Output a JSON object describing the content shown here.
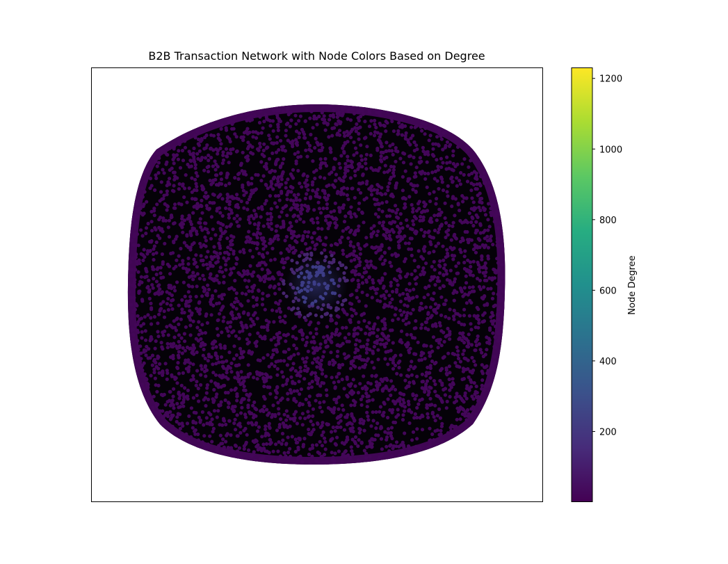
{
  "chart_data": {
    "type": "scatter",
    "title": "B2B Transaction Network with Node Colors Based on Degree",
    "xlabel": "",
    "ylabel": "",
    "description_kind": "network graph rendered as node scatter with edges",
    "node_color_scale": "viridis",
    "colorbar": {
      "label": "Node Degree",
      "range": [
        1,
        1230
      ],
      "ticks": [
        200,
        400,
        600,
        800,
        1000,
        1200
      ],
      "tick_labels": [
        "200",
        "400",
        "600",
        "800",
        "1000",
        "1200"
      ],
      "colors": [
        "#440154",
        "#472c7a",
        "#3b518b",
        "#2c718e",
        "#21908d",
        "#27ad81",
        "#5cc863",
        "#aadc32",
        "#fde725"
      ]
    },
    "node_fill": "#430659",
    "hub_color": "#3b3f8a",
    "edge_color": "#000000",
    "axes_ticks_visible": false,
    "grid": false
  }
}
